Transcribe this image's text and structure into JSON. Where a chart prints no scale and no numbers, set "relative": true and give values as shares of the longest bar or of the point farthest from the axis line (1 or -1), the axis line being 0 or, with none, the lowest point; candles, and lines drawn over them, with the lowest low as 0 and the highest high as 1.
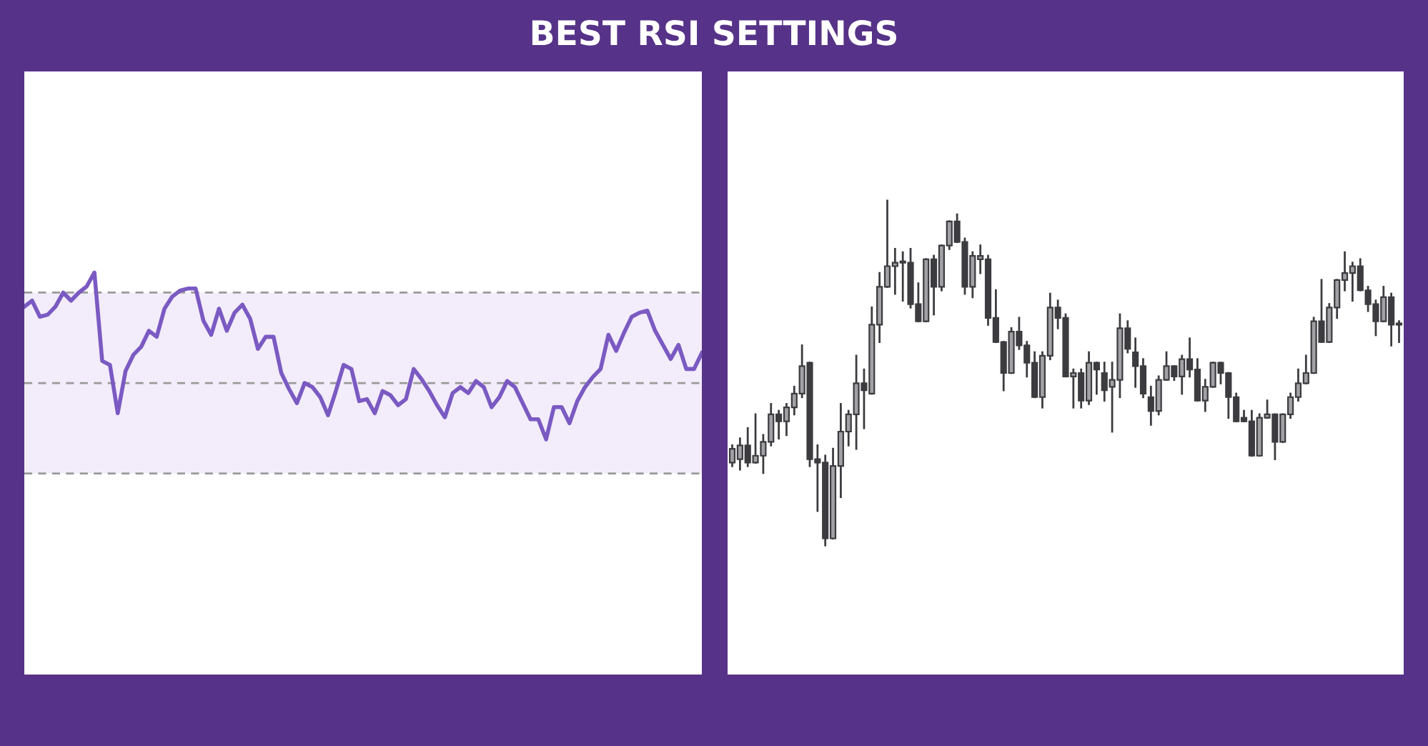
{
  "chart_data": [
    {
      "type": "line",
      "title": "BEST RSI SETTINGS",
      "relative": true,
      "tick_labels": false,
      "grid": false,
      "legend": false,
      "categories": [
        null,
        null,
        null,
        null,
        null,
        null,
        null,
        null,
        null,
        null,
        null,
        null,
        null,
        null,
        null,
        null,
        null,
        null,
        null,
        null,
        null,
        null,
        null,
        null,
        null,
        null,
        null,
        null,
        null,
        null,
        null,
        null,
        null,
        null,
        null,
        null,
        null,
        null,
        null,
        null,
        null,
        null,
        null,
        null,
        null,
        null,
        null,
        null,
        null,
        null,
        null,
        null,
        null,
        null,
        null,
        null,
        null,
        null,
        null,
        null,
        null,
        null,
        null,
        null,
        null,
        null,
        null,
        null,
        null,
        null,
        null,
        null,
        null,
        null,
        null,
        null,
        null,
        null,
        null,
        null,
        null,
        null,
        null,
        null,
        null,
        null,
        null,
        null
      ],
      "series": [
        {
          "color": "#7a5ac2",
          "values": [
            0.83,
            0.86,
            0.78,
            0.79,
            0.83,
            0.9,
            0.86,
            0.9,
            0.93,
            1.0,
            0.56,
            0.54,
            0.3,
            0.51,
            0.59,
            0.63,
            0.71,
            0.68,
            0.82,
            0.88,
            0.91,
            0.92,
            0.92,
            0.76,
            0.69,
            0.82,
            0.71,
            0.8,
            0.84,
            0.77,
            0.62,
            0.68,
            0.68,
            0.5,
            0.42,
            0.35,
            0.45,
            0.43,
            0.38,
            0.29,
            0.41,
            0.54,
            0.52,
            0.36,
            0.37,
            0.3,
            0.41,
            0.39,
            0.34,
            0.37,
            0.52,
            0.47,
            0.41,
            0.34,
            0.28,
            0.4,
            0.43,
            0.4,
            0.46,
            0.43,
            0.33,
            0.38,
            0.46,
            0.43,
            0.35,
            0.27,
            0.27,
            0.17,
            0.33,
            0.33,
            0.25,
            0.36,
            0.43,
            0.48,
            0.52,
            0.69,
            0.61,
            0.7,
            0.78,
            0.8,
            0.81,
            0.71,
            0.64,
            0.57,
            0.64,
            0.52,
            0.52,
            0.6
          ]
        }
      ],
      "bands": [
        {
          "axis": "y",
          "from": 0,
          "to": 0.9,
          "color": "#f3ecfa"
        }
      ],
      "ref_lines": [
        {
          "axis": "y",
          "value": 0.9,
          "color": "#9a9a9a",
          "line_style": "dashed"
        },
        {
          "axis": "y",
          "value": 0.45,
          "color": "#9a9a9a",
          "line_style": "dashed"
        },
        {
          "axis": "y",
          "value": 0,
          "color": "#9a9a9a",
          "line_style": "dashed"
        }
      ]
    },
    {
      "type": "candlestick",
      "relative": true,
      "tick_labels": false,
      "grid": false,
      "legend": false,
      "categories": [
        null,
        null,
        null,
        null,
        null,
        null,
        null,
        null,
        null,
        null,
        null,
        null,
        null,
        null,
        null,
        null,
        null,
        null,
        null,
        null,
        null,
        null,
        null,
        null,
        null,
        null,
        null,
        null,
        null,
        null,
        null,
        null,
        null,
        null,
        null,
        null,
        null,
        null,
        null,
        null,
        null,
        null,
        null,
        null,
        null,
        null,
        null,
        null,
        null,
        null,
        null,
        null,
        null,
        null,
        null,
        null,
        null,
        null,
        null,
        null,
        null,
        null,
        null,
        null,
        null,
        null,
        null,
        null,
        null,
        null,
        null,
        null,
        null,
        null,
        null,
        null,
        null,
        null,
        null,
        null,
        null,
        null,
        null,
        null,
        null,
        null,
        null
      ],
      "ohlc": [
        [
          0.24,
          0.29,
          0.23,
          0.28
        ],
        [
          0.25,
          0.31,
          0.22,
          0.29
        ],
        [
          0.29,
          0.34,
          0.23,
          0.24
        ],
        [
          0.24,
          0.38,
          0.24,
          0.26
        ],
        [
          0.26,
          0.32,
          0.21,
          0.3
        ],
        [
          0.3,
          0.41,
          0.29,
          0.38
        ],
        [
          0.38,
          0.39,
          0.31,
          0.36
        ],
        [
          0.36,
          0.41,
          0.32,
          0.4
        ],
        [
          0.4,
          0.46,
          0.38,
          0.44
        ],
        [
          0.44,
          0.58,
          0.43,
          0.52
        ],
        [
          0.53,
          0.53,
          0.23,
          0.25
        ],
        [
          0.25,
          0.29,
          0.1,
          0.24
        ],
        [
          0.24,
          0.26,
          0.0,
          0.02
        ],
        [
          0.02,
          0.28,
          0.02,
          0.23
        ],
        [
          0.23,
          0.41,
          0.14,
          0.33
        ],
        [
          0.33,
          0.39,
          0.29,
          0.38
        ],
        [
          0.38,
          0.55,
          0.28,
          0.47
        ],
        [
          0.47,
          0.51,
          0.34,
          0.45
        ],
        [
          0.44,
          0.69,
          0.44,
          0.64
        ],
        [
          0.64,
          0.79,
          0.59,
          0.75
        ],
        [
          0.75,
          1.0,
          0.75,
          0.81
        ],
        [
          0.81,
          0.86,
          0.73,
          0.82
        ],
        [
          0.82,
          0.85,
          0.71,
          0.82
        ],
        [
          0.82,
          0.86,
          0.69,
          0.7
        ],
        [
          0.7,
          0.76,
          0.65,
          0.65
        ],
        [
          0.65,
          0.83,
          0.65,
          0.83
        ],
        [
          0.83,
          0.84,
          0.67,
          0.75
        ],
        [
          0.75,
          0.87,
          0.74,
          0.87
        ],
        [
          0.87,
          0.94,
          0.86,
          0.94
        ],
        [
          0.94,
          0.96,
          0.88,
          0.88
        ],
        [
          0.88,
          0.89,
          0.73,
          0.75
        ],
        [
          0.75,
          0.85,
          0.72,
          0.84
        ],
        [
          0.83,
          0.87,
          0.79,
          0.84
        ],
        [
          0.83,
          0.84,
          0.64,
          0.66
        ],
        [
          0.66,
          0.74,
          0.59,
          0.59
        ],
        [
          0.59,
          0.59,
          0.45,
          0.5
        ],
        [
          0.5,
          0.63,
          0.5,
          0.62
        ],
        [
          0.62,
          0.66,
          0.57,
          0.58
        ],
        [
          0.58,
          0.59,
          0.49,
          0.53
        ],
        [
          0.53,
          0.56,
          0.43,
          0.43
        ],
        [
          0.43,
          0.56,
          0.4,
          0.55
        ],
        [
          0.55,
          0.73,
          0.54,
          0.69
        ],
        [
          0.69,
          0.71,
          0.63,
          0.66
        ],
        [
          0.66,
          0.67,
          0.49,
          0.49
        ],
        [
          0.49,
          0.51,
          0.4,
          0.5
        ],
        [
          0.5,
          0.51,
          0.4,
          0.42
        ],
        [
          0.42,
          0.56,
          0.41,
          0.53
        ],
        [
          0.53,
          0.53,
          0.44,
          0.51
        ],
        [
          0.5,
          0.53,
          0.42,
          0.45
        ],
        [
          0.46,
          0.53,
          0.33,
          0.48
        ],
        [
          0.48,
          0.67,
          0.43,
          0.63
        ],
        [
          0.63,
          0.65,
          0.56,
          0.57
        ],
        [
          0.56,
          0.6,
          0.46,
          0.52
        ],
        [
          0.52,
          0.54,
          0.43,
          0.44
        ],
        [
          0.43,
          0.46,
          0.35,
          0.39
        ],
        [
          0.39,
          0.49,
          0.38,
          0.48
        ],
        [
          0.48,
          0.56,
          0.48,
          0.52
        ],
        [
          0.52,
          0.52,
          0.48,
          0.49
        ],
        [
          0.49,
          0.55,
          0.44,
          0.54
        ],
        [
          0.54,
          0.6,
          0.49,
          0.51
        ],
        [
          0.51,
          0.54,
          0.42,
          0.42
        ],
        [
          0.42,
          0.48,
          0.39,
          0.46
        ],
        [
          0.46,
          0.53,
          0.46,
          0.53
        ],
        [
          0.53,
          0.53,
          0.47,
          0.5
        ],
        [
          0.5,
          0.5,
          0.37,
          0.43
        ],
        [
          0.43,
          0.44,
          0.36,
          0.36
        ],
        [
          0.37,
          0.39,
          0.36,
          0.36
        ],
        [
          0.36,
          0.39,
          0.26,
          0.26
        ],
        [
          0.26,
          0.38,
          0.26,
          0.37
        ],
        [
          0.37,
          0.42,
          0.37,
          0.38
        ],
        [
          0.38,
          0.38,
          0.25,
          0.3
        ],
        [
          0.3,
          0.38,
          0.3,
          0.38
        ],
        [
          0.38,
          0.44,
          0.37,
          0.43
        ],
        [
          0.43,
          0.51,
          0.42,
          0.47
        ],
        [
          0.47,
          0.55,
          0.47,
          0.5
        ],
        [
          0.5,
          0.66,
          0.5,
          0.65
        ],
        [
          0.65,
          0.77,
          0.59,
          0.59
        ],
        [
          0.59,
          0.7,
          0.59,
          0.69
        ],
        [
          0.69,
          0.77,
          0.66,
          0.77
        ],
        [
          0.77,
          0.85,
          0.74,
          0.79
        ],
        [
          0.79,
          0.82,
          0.71,
          0.81
        ],
        [
          0.81,
          0.83,
          0.74,
          0.74
        ],
        [
          0.74,
          0.75,
          0.68,
          0.7
        ],
        [
          0.7,
          0.71,
          0.61,
          0.65
        ],
        [
          0.65,
          0.75,
          0.65,
          0.72
        ],
        [
          0.72,
          0.73,
          0.58,
          0.64
        ],
        [
          0.64,
          0.65,
          0.59,
          0.64
        ]
      ],
      "colors": [
        "#a2a2a6",
        "#a2a2a6",
        "#3c3c40",
        "#a2a2a6",
        "#a2a2a6",
        "#a2a2a6",
        "#3c3c40",
        "#a2a2a6",
        "#a2a2a6",
        "#a2a2a6",
        "#3c3c40",
        "#3c3c40",
        "#3c3c40",
        "#a2a2a6",
        "#a2a2a6",
        "#a2a2a6",
        "#a2a2a6",
        "#3c3c40",
        "#a2a2a6",
        "#a2a2a6",
        "#a2a2a6",
        "#a2a2a6",
        "#a2a2a6",
        "#3c3c40",
        "#3c3c40",
        "#a2a2a6",
        "#3c3c40",
        "#a2a2a6",
        "#a2a2a6",
        "#3c3c40",
        "#3c3c40",
        "#a2a2a6",
        "#a2a2a6",
        "#3c3c40",
        "#3c3c40",
        "#3c3c40",
        "#a2a2a6",
        "#3c3c40",
        "#3c3c40",
        "#3c3c40",
        "#a2a2a6",
        "#a2a2a6",
        "#3c3c40",
        "#3c3c40",
        "#a2a2a6",
        "#3c3c40",
        "#a2a2a6",
        "#3c3c40",
        "#3c3c40",
        "#a2a2a6",
        "#a2a2a6",
        "#3c3c40",
        "#3c3c40",
        "#3c3c40",
        "#3c3c40",
        "#a2a2a6",
        "#a2a2a6",
        "#3c3c40",
        "#a2a2a6",
        "#3c3c40",
        "#3c3c40",
        "#a2a2a6",
        "#a2a2a6",
        "#3c3c40",
        "#3c3c40",
        "#3c3c40",
        "#3c3c40",
        "#3c3c40",
        "#a2a2a6",
        "#a2a2a6",
        "#3c3c40",
        "#a2a2a6",
        "#a2a2a6",
        "#a2a2a6",
        "#a2a2a6",
        "#a2a2a6",
        "#3c3c40",
        "#a2a2a6",
        "#a2a2a6",
        "#a2a2a6",
        "#a2a2a6",
        "#3c3c40",
        "#3c3c40",
        "#3c3c40",
        "#a2a2a6",
        "#3c3c40",
        "#a2a2a6"
      ]
    }
  ]
}
